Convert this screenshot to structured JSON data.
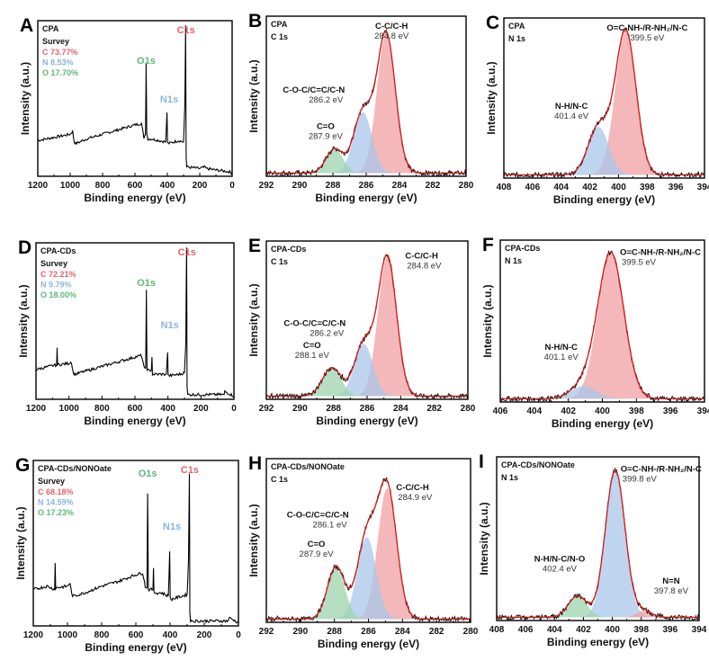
{
  "figure": {
    "colors": {
      "carbon": "#e8616a",
      "nitrogen": "#8ab4e0",
      "oxygen": "#5cb87a",
      "fit_envelope": "#d91c1c",
      "raw_data": "#000000",
      "component_red": "#f0a0a3",
      "component_blue": "#a9c7ea",
      "component_green": "#9ed4ae"
    }
  },
  "chart_data": [
    {
      "id": "A",
      "type": "line",
      "panel_letter": "A",
      "sample": "CPA",
      "region": "Survey",
      "xlabel": "Binding energy (eV)",
      "ylabel": "Intensity (a.u.)",
      "xlim": [
        1200,
        0
      ],
      "xticks": [
        1200,
        1000,
        800,
        600,
        400,
        200,
        0
      ],
      "ylim": [
        0,
        1
      ],
      "composition": [
        {
          "element": "C",
          "label": "C  73.77%",
          "color": "#e8616a"
        },
        {
          "element": "N",
          "label": "N    8.53%",
          "color": "#8ab4e0"
        },
        {
          "element": "O",
          "label": "O  17.70%",
          "color": "#5cb87a"
        }
      ],
      "peak_labels": [
        {
          "text": "C1s",
          "x": 285,
          "y": 0.97,
          "color": "#e8616a"
        },
        {
          "text": "O1s",
          "x": 531,
          "y": 0.7,
          "color": "#5cb87a"
        },
        {
          "text": "N1s",
          "x": 400,
          "y": 0.44,
          "color": "#8ab4e0"
        }
      ],
      "spectrum": {
        "x": [
          1200,
          1100,
          1000,
          985,
          975,
          965,
          900,
          800,
          700,
          600,
          560,
          545,
          535,
          531,
          527,
          520,
          500,
          450,
          410,
          402,
          399,
          395,
          330,
          300,
          292,
          287,
          284,
          280,
          200,
          165,
          160,
          100,
          20,
          0
        ],
        "y": [
          0.23,
          0.25,
          0.27,
          0.29,
          0.22,
          0.21,
          0.24,
          0.27,
          0.3,
          0.33,
          0.34,
          0.25,
          0.27,
          0.73,
          0.27,
          0.24,
          0.24,
          0.23,
          0.22,
          0.41,
          0.22,
          0.21,
          0.23,
          0.22,
          0.45,
          0.97,
          0.12,
          0.06,
          0.05,
          0.06,
          0.05,
          0.04,
          0.03,
          0.02
        ]
      }
    },
    {
      "id": "B",
      "type": "area",
      "panel_letter": "B",
      "sample": "CPA",
      "region": "C 1s",
      "xlabel": "Binding energy (eV)",
      "ylabel": "Intensity (a.u.)",
      "xlim": [
        292,
        280
      ],
      "xticks": [
        292,
        290,
        288,
        286,
        284,
        282,
        280
      ],
      "ylim": [
        0,
        1
      ],
      "baseline": 0.02,
      "components": [
        {
          "name": "C-C/C-H",
          "center": 284.8,
          "center_label": "284.8 eV",
          "height": 0.87,
          "fwhm": 1.3,
          "color": "#f0a0a3"
        },
        {
          "name": "C-O-C/C=C/C-N",
          "center": 286.2,
          "center_label": "286.2 eV",
          "height": 0.38,
          "fwhm": 1.3,
          "color": "#a9c7ea"
        },
        {
          "name": "C=O",
          "center": 287.9,
          "center_label": "287.9 eV",
          "height": 0.15,
          "fwhm": 1.2,
          "color": "#9ed4ae"
        }
      ]
    },
    {
      "id": "C",
      "type": "area",
      "panel_letter": "C",
      "sample": "CPA",
      "region": "N 1s",
      "xlabel": "Binding energy (eV)",
      "ylabel": "Intensity (a.u.)",
      "xlim": [
        408,
        394
      ],
      "xticks": [
        408,
        406,
        404,
        402,
        400,
        398,
        396,
        394
      ],
      "ylim": [
        0,
        1
      ],
      "baseline": 0.02,
      "components": [
        {
          "name": "O=C-NH-/R-NH₂/N-C",
          "center": 399.5,
          "center_label": "399.5 eV",
          "height": 0.9,
          "fwhm": 1.7,
          "color": "#f0a0a3"
        },
        {
          "name": "N-H/N-C",
          "center": 401.4,
          "center_label": "401.4 eV",
          "height": 0.3,
          "fwhm": 1.7,
          "color": "#a9c7ea"
        }
      ]
    },
    {
      "id": "D",
      "type": "line",
      "panel_letter": "D",
      "sample": "CPA-CDs",
      "region": "Survey",
      "xlabel": "Binding energy (eV)",
      "ylabel": "Intensity (a.u.)",
      "xlim": [
        1200,
        0
      ],
      "xticks": [
        1200,
        1000,
        800,
        600,
        400,
        200,
        0
      ],
      "ylim": [
        0,
        1
      ],
      "composition": [
        {
          "element": "C",
          "label": "C 72.21%",
          "color": "#e8616a"
        },
        {
          "element": "N",
          "label": "N   9.79%",
          "color": "#8ab4e0"
        },
        {
          "element": "O",
          "label": "O 18.00%",
          "color": "#5cb87a"
        }
      ],
      "peak_labels": [
        {
          "text": "C1s",
          "x": 285,
          "y": 0.97,
          "color": "#e8616a"
        },
        {
          "text": "O1s",
          "x": 531,
          "y": 0.7,
          "color": "#5cb87a"
        },
        {
          "text": "N1s",
          "x": 400,
          "y": 0.42,
          "color": "#8ab4e0"
        }
      ],
      "spectrum": {
        "x": [
          1200,
          1120,
          1075,
          1072,
          1069,
          1000,
          985,
          975,
          965,
          900,
          800,
          700,
          600,
          560,
          545,
          535,
          531,
          527,
          510,
          500,
          497,
          494,
          450,
          410,
          402,
          399,
          395,
          330,
          300,
          292,
          287,
          284,
          280,
          200,
          60,
          55,
          0
        ],
        "y": [
          0.19,
          0.21,
          0.22,
          0.33,
          0.22,
          0.23,
          0.24,
          0.17,
          0.16,
          0.18,
          0.21,
          0.24,
          0.27,
          0.28,
          0.2,
          0.2,
          0.7,
          0.19,
          0.18,
          0.19,
          0.27,
          0.16,
          0.16,
          0.16,
          0.3,
          0.16,
          0.15,
          0.16,
          0.17,
          0.35,
          0.97,
          0.08,
          0.03,
          0.03,
          0.03,
          0.05,
          0.02
        ]
      }
    },
    {
      "id": "E",
      "type": "area",
      "panel_letter": "E",
      "sample": "CPA-CDs",
      "region": "C 1s",
      "xlabel": "Binding energy (eV)",
      "ylabel": "Intensity (a.u.)",
      "xlim": [
        292,
        280
      ],
      "xticks": [
        292,
        290,
        288,
        286,
        284,
        282,
        280
      ],
      "ylim": [
        0,
        1
      ],
      "baseline": 0.02,
      "components": [
        {
          "name": "C-C/C-H",
          "center": 284.8,
          "center_label": "284.8 eV",
          "height": 0.88,
          "fwhm": 1.3,
          "color": "#f0a0a3"
        },
        {
          "name": "C-O-C/C=C/C-N",
          "center": 286.2,
          "center_label": "286.2 eV",
          "height": 0.33,
          "fwhm": 1.3,
          "color": "#a9c7ea"
        },
        {
          "name": "C=O",
          "center": 288.1,
          "center_label": "288.1 eV",
          "height": 0.18,
          "fwhm": 1.3,
          "color": "#9ed4ae"
        }
      ]
    },
    {
      "id": "F",
      "type": "area",
      "panel_letter": "F",
      "sample": "CPA-CDs",
      "region": "N 1s",
      "xlabel": "Binding energy (eV)",
      "ylabel": "Intensity (a.u.)",
      "xlim": [
        406,
        394
      ],
      "xticks": [
        406,
        404,
        402,
        400,
        398,
        396,
        394
      ],
      "ylim": [
        0,
        1
      ],
      "baseline": 0.02,
      "components": [
        {
          "name": "O=C-NH-/R-NH₂/N-C",
          "center": 399.5,
          "center_label": "399.5 eV",
          "height": 0.9,
          "fwhm": 1.8,
          "color": "#f0a0a3"
        },
        {
          "name": "N-H/N-C",
          "center": 401.1,
          "center_label": "401.1 eV",
          "height": 0.08,
          "fwhm": 1.7,
          "color": "#a9c7ea"
        }
      ]
    },
    {
      "id": "G",
      "type": "line",
      "panel_letter": "G",
      "sample": "CPA-CDs/NONOate",
      "region": "Survey",
      "xlabel": "Binding energy (eV)",
      "ylabel": "Intensity (a.u.)",
      "xlim": [
        1200,
        0
      ],
      "xticks": [
        1200,
        1000,
        800,
        600,
        400,
        200,
        0
      ],
      "ylim": [
        0,
        1
      ],
      "composition": [
        {
          "element": "C",
          "label": "C 68.18%",
          "color": "#e8616a"
        },
        {
          "element": "N",
          "label": "N 14.59%",
          "color": "#8ab4e0"
        },
        {
          "element": "O",
          "label": "O 17.23%",
          "color": "#5cb87a"
        }
      ],
      "peak_labels": [
        {
          "text": "C1s",
          "x": 285,
          "y": 0.97,
          "color": "#e8616a"
        },
        {
          "text": "O1s",
          "x": 531,
          "y": 0.88,
          "color": "#5cb87a"
        },
        {
          "text": "N1s",
          "x": 400,
          "y": 0.55,
          "color": "#8ab4e0"
        }
      ],
      "spectrum": {
        "x": [
          1200,
          1120,
          1075,
          1072,
          1069,
          1000,
          985,
          975,
          965,
          900,
          800,
          700,
          600,
          560,
          545,
          535,
          531,
          527,
          510,
          500,
          497,
          494,
          450,
          410,
          402,
          399,
          395,
          330,
          300,
          292,
          287,
          284,
          280,
          200,
          60,
          55,
          0
        ],
        "y": [
          0.22,
          0.24,
          0.22,
          0.38,
          0.23,
          0.24,
          0.26,
          0.19,
          0.18,
          0.2,
          0.24,
          0.27,
          0.31,
          0.32,
          0.24,
          0.23,
          0.8,
          0.22,
          0.22,
          0.22,
          0.35,
          0.2,
          0.2,
          0.18,
          0.45,
          0.17,
          0.16,
          0.18,
          0.19,
          0.4,
          0.92,
          0.08,
          0.03,
          0.03,
          0.03,
          0.05,
          0.02
        ]
      }
    },
    {
      "id": "H",
      "type": "area",
      "panel_letter": "H",
      "sample": "CPA-CDs/NONOate",
      "region": "C 1s",
      "xlabel": "Binding energy (eV)",
      "ylabel": "Intensity (a.u.)",
      "xlim": [
        292,
        280
      ],
      "xticks": [
        292,
        290,
        288,
        286,
        284,
        282,
        280
      ],
      "ylim": [
        0,
        1
      ],
      "baseline": 0.02,
      "components": [
        {
          "name": "C-C/C-H",
          "center": 284.9,
          "center_label": "284.9 eV",
          "height": 0.8,
          "fwhm": 1.3,
          "color": "#f0a0a3"
        },
        {
          "name": "C-O-C/C=C/C-N",
          "center": 286.1,
          "center_label": "286.1 eV",
          "height": 0.5,
          "fwhm": 1.3,
          "color": "#a9c7ea"
        },
        {
          "name": "C=O",
          "center": 287.9,
          "center_label": "287.9 eV",
          "height": 0.32,
          "fwhm": 1.2,
          "color": "#9ed4ae"
        }
      ]
    },
    {
      "id": "I",
      "type": "area",
      "panel_letter": "I",
      "sample": "CPA-CDs/NONOate",
      "region": "N 1s",
      "xlabel": "Binding energy (eV)",
      "ylabel": "Intensity (a.u.)",
      "xlim": [
        408,
        394
      ],
      "xticks": [
        408,
        406,
        404,
        402,
        400,
        398,
        396,
        394
      ],
      "ylim": [
        0,
        1
      ],
      "baseline": 0.02,
      "components": [
        {
          "name": "O=C-NH-/R-NH₂/N-C",
          "center": 399.8,
          "center_label": "399.8 eV",
          "height": 0.9,
          "fwhm": 1.6,
          "color": "#a9c7ea"
        },
        {
          "name": "N-H/N-C/N-O",
          "center": 402.4,
          "center_label": "402.4 eV",
          "height": 0.13,
          "fwhm": 1.5,
          "color": "#9ed4ae"
        },
        {
          "name": "N=N",
          "center": 397.8,
          "center_label": "397.8 eV",
          "height": 0.04,
          "fwhm": 1.2,
          "color": "#f0a0a3"
        }
      ]
    }
  ]
}
